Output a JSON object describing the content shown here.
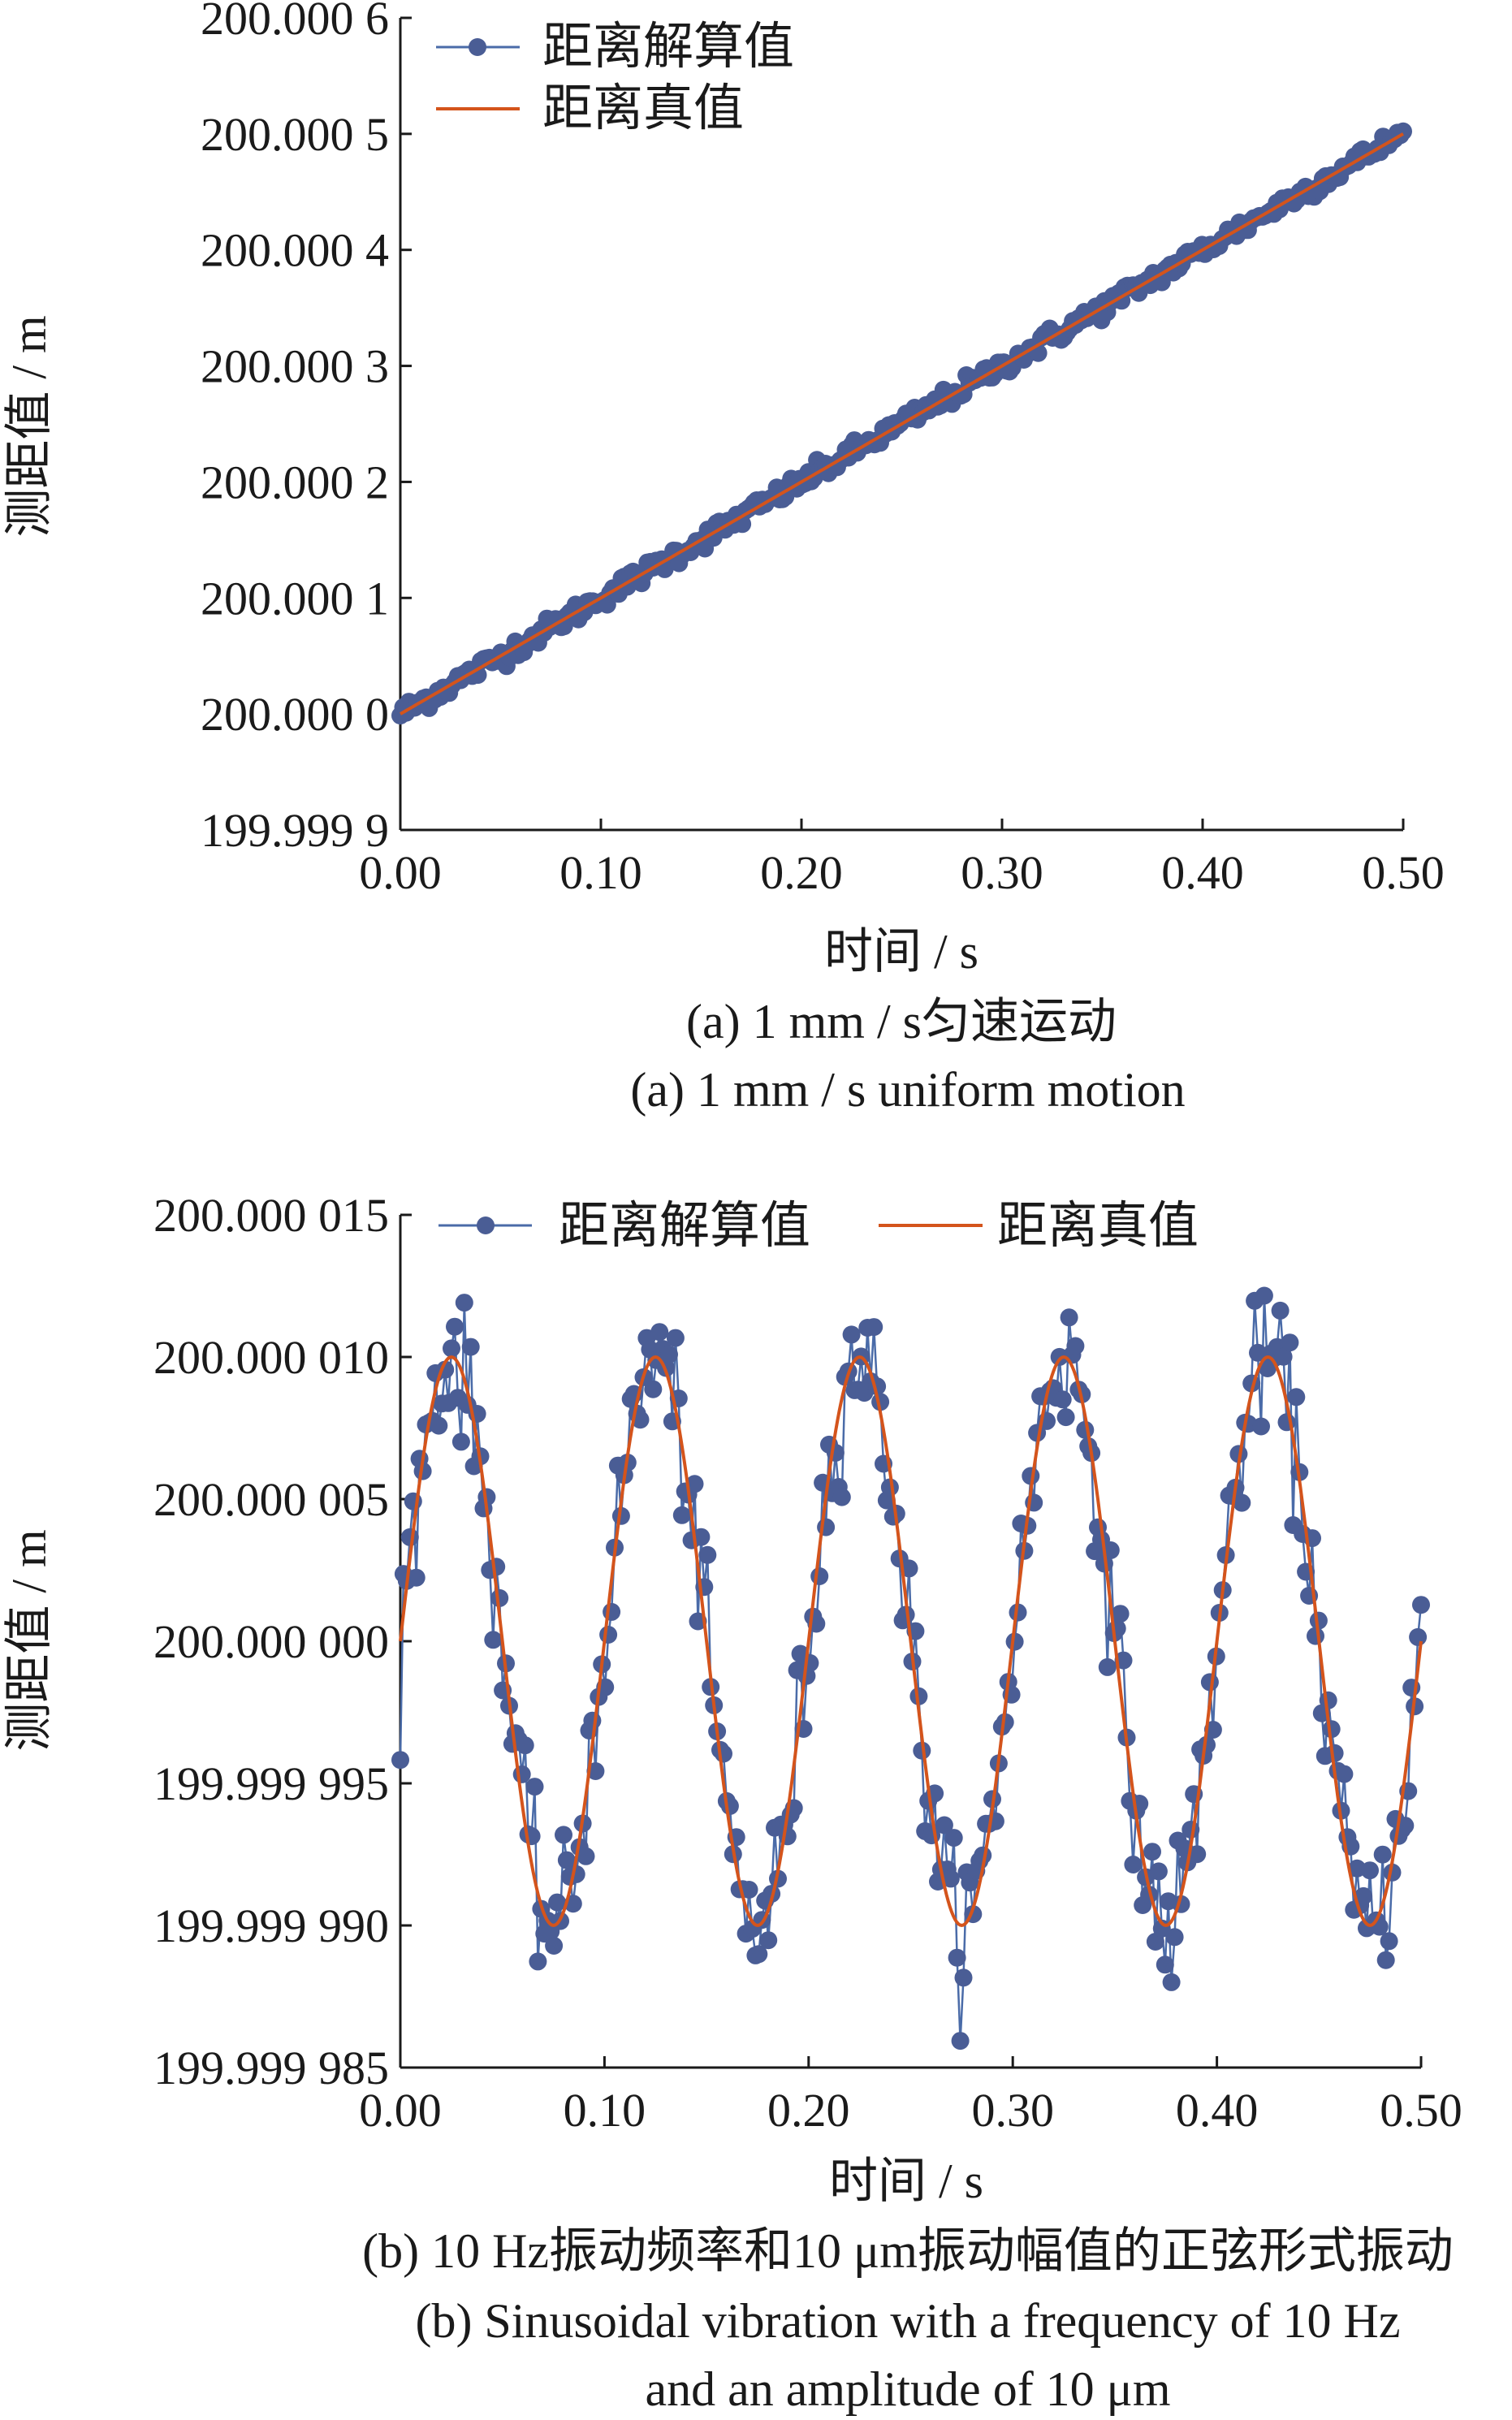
{
  "colors": {
    "solved_marker": "#4a5d95",
    "solved_line": "#4a6ba8",
    "truth_line": "#d4541c",
    "axis": "#1a1a1a"
  },
  "chart_data": [
    {
      "type": "line",
      "id": "a",
      "ylabel": "测距值 / m",
      "xlabel": "时间 / s",
      "caption_cn": "(a) 1 mm / s匀速运动",
      "caption_en": "(a) 1 mm / s uniform motion",
      "xlim": [
        0,
        0.5
      ],
      "ylim": [
        199.9999,
        200.0006
      ],
      "x_ticks": [
        "0.00",
        "0.10",
        "0.20",
        "0.30",
        "0.40",
        "0.50"
      ],
      "y_ticks": [
        "199.999 9",
        "200.000 0",
        "200.000 1",
        "200.000 2",
        "200.000 3",
        "200.000 4",
        "200.000 5",
        "200.000 6"
      ],
      "legend_position": "top-left",
      "series": [
        {
          "name": "距离解算值",
          "style": "line+markers",
          "model": "linear",
          "start": 200.0,
          "slope_m_per_s": 0.001,
          "x_range": [
            0,
            0.5
          ],
          "n_points": 350,
          "noise_m": 4.5e-06
        },
        {
          "name": "距离真值",
          "style": "line",
          "model": "linear",
          "start": 200.0,
          "slope_m_per_s": 0.001,
          "x_range": [
            0,
            0.5
          ]
        }
      ]
    },
    {
      "type": "line",
      "id": "b",
      "ylabel": "测距值 / m",
      "xlabel": "时间 / s",
      "caption_cn": "(b) 10 Hz振动频率和10 μm振动幅值的正弦形式振动",
      "caption_en_1": "(b) Sinusoidal vibration with a frequency of 10 Hz",
      "caption_en_2": "and an amplitude of 10 μm",
      "xlim": [
        0,
        0.5
      ],
      "ylim": [
        199.999985,
        200.000015
      ],
      "x_ticks": [
        "0.00",
        "0.10",
        "0.20",
        "0.30",
        "0.40",
        "0.50"
      ],
      "y_ticks": [
        "199.999 985",
        "199.999 990",
        "199.999 995",
        "200.000 000",
        "200.000 005",
        "200.000 010",
        "200.000 015"
      ],
      "legend_position": "top",
      "series": [
        {
          "name": "距离解算值",
          "style": "line+markers",
          "model": "sine",
          "center": 200.0,
          "amplitude_m": 1e-05,
          "frequency_hz": 10,
          "x_range": [
            0,
            0.5
          ],
          "n_points": 320,
          "noise_m": 1.2e-06
        },
        {
          "name": "距离真值",
          "style": "line",
          "model": "sine",
          "center": 200.0,
          "amplitude_m": 1e-05,
          "frequency_hz": 10,
          "x_range": [
            0,
            0.5
          ]
        }
      ]
    }
  ]
}
